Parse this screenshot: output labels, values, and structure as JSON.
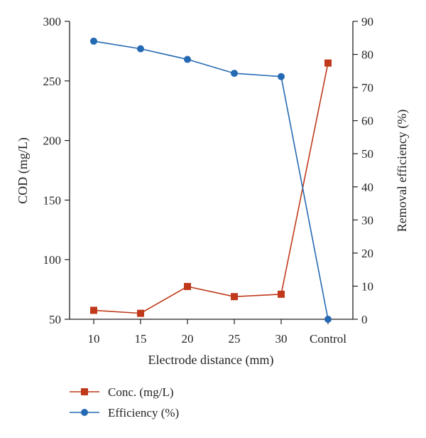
{
  "chart_data": {
    "type": "line",
    "categories": [
      "10",
      "15",
      "20",
      "25",
      "30",
      "Control"
    ],
    "xlabel": "Electrode distance (mm)",
    "ylabel": "COD (mg/L)",
    "y2label": "Removal efficiency (%)",
    "ylim": [
      50,
      300
    ],
    "y2lim": [
      0,
      90
    ],
    "yticks": [
      50,
      100,
      150,
      200,
      250,
      300
    ],
    "y2ticks": [
      0,
      10,
      20,
      30,
      40,
      50,
      60,
      70,
      80,
      90
    ],
    "legend_position": "bottom-left",
    "series": [
      {
        "name": "Conc. (mg/L)",
        "axis": "left",
        "marker": "square",
        "color": "#c0391b",
        "values": [
          57.5,
          55,
          77.5,
          69,
          71,
          265
        ]
      },
      {
        "name": "Efficiency (%)",
        "axis": "right",
        "marker": "circle",
        "color": "#2469b3",
        "values": [
          84,
          81.7,
          78.5,
          74.3,
          73.3,
          0
        ]
      }
    ]
  }
}
